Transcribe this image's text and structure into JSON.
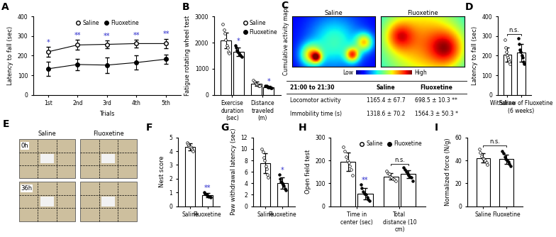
{
  "chart_data": [
    {
      "panel": "A",
      "type": "line",
      "categories": [
        "1st",
        "2nd",
        "3rd",
        "4th",
        "5th"
      ],
      "x_label": "Trials",
      "y_label": "Latency to fall (sec)",
      "ylim": [
        0,
        400
      ],
      "yticks": [
        0,
        100,
        200,
        300,
        400
      ],
      "legend": "upper center",
      "series": [
        {
          "name": "Saline",
          "color": "#ffffff",
          "marker": "o",
          "values": [
            220,
            255,
            258,
            262,
            262
          ],
          "errors": [
            25,
            25,
            20,
            20,
            25
          ]
        },
        {
          "name": "Fluoxetine",
          "color": "#000000",
          "marker": "o",
          "values": [
            133,
            155,
            152,
            165,
            182
          ],
          "errors": [
            35,
            30,
            40,
            35,
            25
          ]
        }
      ],
      "significance": [
        "*",
        "**",
        "**",
        "**",
        "**"
      ]
    },
    {
      "panel": "B",
      "type": "bar",
      "categories": [
        "Exercise duration (sec)",
        "Distance traveled (m)"
      ],
      "y_label": "Fatigue rotating wheel test",
      "ylim": [
        0,
        3000
      ],
      "yticks": [
        0,
        1000,
        2000,
        3000
      ],
      "legend": "upper right",
      "series": [
        {
          "name": "Saline",
          "color": "#ffffff",
          "values": [
            2080,
            420
          ],
          "errors": [
            300,
            90
          ],
          "points": [
            [
              2700,
              2500,
              2350,
              2100,
              1900,
              1800,
              1650,
              1600
            ],
            [
              550,
              500,
              450,
              420,
              400,
              380,
              350,
              330
            ]
          ]
        },
        {
          "name": "Fluoxetine",
          "color": "#000000",
          "values": [
            1650,
            300
          ],
          "errors": [
            170,
            50
          ],
          "points": [
            [
              1900,
              1800,
              1700,
              1650,
              1600,
              1550,
              1500,
              1450
            ],
            [
              350,
              330,
              310,
              300,
              290,
              280,
              270,
              260
            ]
          ]
        }
      ],
      "significance": [
        "*",
        "*"
      ]
    },
    {
      "panel": "D",
      "type": "bar",
      "categories": [
        "Saline",
        "Withdraw of Fluoxetine (6 weeks)"
      ],
      "y_label": "Latency to fall (sec)",
      "ylim": [
        0,
        400
      ],
      "yticks": [
        0,
        100,
        200,
        300,
        400
      ],
      "values": [
        205,
        215
      ],
      "errors": [
        35,
        45
      ],
      "colors": [
        "#ffffff",
        "#000000"
      ],
      "points": [
        [
          280,
          240,
          220,
          200,
          190,
          180,
          170,
          160
        ],
        [
          290,
          260,
          230,
          220,
          200,
          190,
          170,
          160
        ]
      ],
      "significance": "n.s."
    },
    {
      "panel": "F",
      "type": "bar",
      "categories": [
        "Saline",
        "Fluoxetine"
      ],
      "y_label": "Nest score",
      "ylim": [
        0,
        5
      ],
      "yticks": [
        0,
        1,
        2,
        3,
        4,
        5
      ],
      "values": [
        4.3,
        0.8
      ],
      "errors": [
        0.25,
        0.15
      ],
      "colors": [
        "#ffffff",
        "#000000"
      ],
      "points": [
        [
          4.6,
          4.5,
          4.4,
          4.3,
          4.3,
          4.2,
          4.1,
          4.0
        ],
        [
          1.0,
          0.9,
          0.85,
          0.8,
          0.75,
          0.7,
          0.7,
          0.65
        ]
      ],
      "significance": "**"
    },
    {
      "panel": "G",
      "type": "bar",
      "categories": [
        "Saline",
        "Fluoxetine"
      ],
      "y_label": "Paw withdrawal latency (sec)",
      "ylim": [
        0,
        12
      ],
      "yticks": [
        0,
        2,
        4,
        6,
        8,
        10,
        12
      ],
      "values": [
        7.5,
        4.0
      ],
      "errors": [
        1.7,
        1.0
      ],
      "colors": [
        "#ffffff",
        "#000000"
      ],
      "points": [
        [
          10,
          9.5,
          8.5,
          8,
          7,
          6.5,
          5.5,
          5
        ],
        [
          5.5,
          4.8,
          4.3,
          4,
          3.8,
          3.5,
          3,
          2.8
        ]
      ],
      "significance": "*"
    },
    {
      "panel": "H",
      "type": "bar",
      "categories": [
        "Time in center (sec)",
        "Total distance (10 cm)"
      ],
      "y_label": "Open field test",
      "ylim": [
        0,
        300
      ],
      "yticks": [
        0,
        100,
        200,
        300
      ],
      "legend": "upper right",
      "series": [
        {
          "name": "Saline",
          "color": "#ffffff",
          "values": [
            195,
            130
          ],
          "errors": [
            40,
            15
          ],
          "points": [
            [
              260,
              240,
              215,
              200,
              190,
              175,
              160,
              135
            ],
            [
              155,
              145,
              140,
              130,
              125,
              120,
              115,
              110
            ]
          ]
        },
        {
          "name": "Fluoxetine",
          "color": "#000000",
          "values": [
            55,
            140
          ],
          "errors": [
            25,
            18
          ],
          "points": [
            [
              95,
              80,
              65,
              55,
              50,
              40,
              30,
              25
            ],
            [
              170,
              160,
              150,
              140,
              135,
              130,
              125,
              110
            ]
          ]
        }
      ],
      "significance": [
        "**",
        "n.s."
      ]
    },
    {
      "panel": "I",
      "type": "bar",
      "categories": [
        "Saline",
        "Fluoxetine"
      ],
      "y_label": "Normalized force (N/g)",
      "ylim": [
        0,
        60
      ],
      "yticks": [
        0,
        20,
        40,
        60
      ],
      "values": [
        42,
        41
      ],
      "errors": [
        4,
        4
      ],
      "colors": [
        "#ffffff",
        "#000000"
      ],
      "points": [
        [
          50,
          47,
          44,
          42,
          41,
          40,
          38,
          36
        ],
        [
          48,
          46,
          43,
          41,
          40,
          39,
          37,
          35
        ]
      ],
      "significance": "n.s."
    }
  ],
  "panel_C": {
    "panel": "C",
    "side_label": "Cumulative activity maps",
    "map_titles": [
      "Saline",
      "Fluoxetine"
    ],
    "scale_labels": [
      "Low",
      "High"
    ],
    "table": {
      "header": [
        "21:00 to 21:30",
        "Saline",
        "Fluoxetine"
      ],
      "rows": [
        [
          "Locomotor activity",
          "1165.4 ± 67.7",
          "698.5 ± 10.3 **"
        ],
        [
          "Immobility time (s)",
          "1318.6 ± 70.2",
          "1564.3 ± 50.3 *"
        ]
      ]
    }
  },
  "panel_E": {
    "panel": "E",
    "column_labels": [
      "Saline",
      "Fluoxetine"
    ],
    "row_labels": [
      "0h",
      "36h"
    ]
  }
}
